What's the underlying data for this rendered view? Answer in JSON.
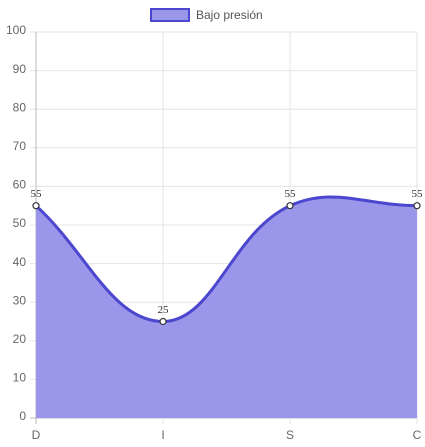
{
  "chart_data": {
    "type": "line",
    "categories": [
      "D",
      "I",
      "S",
      "C"
    ],
    "series": [
      {
        "name": "Bajo presión",
        "color": "#4b47cf",
        "fill": "#9a97ea",
        "values": [
          55,
          25,
          55,
          55
        ]
      }
    ],
    "ylim": [
      0,
      100
    ],
    "yticks": [
      0,
      10,
      20,
      30,
      40,
      50,
      60,
      70,
      80,
      90,
      100
    ],
    "grid": true,
    "legend": "top",
    "smooth": true,
    "data_labels": true
  }
}
